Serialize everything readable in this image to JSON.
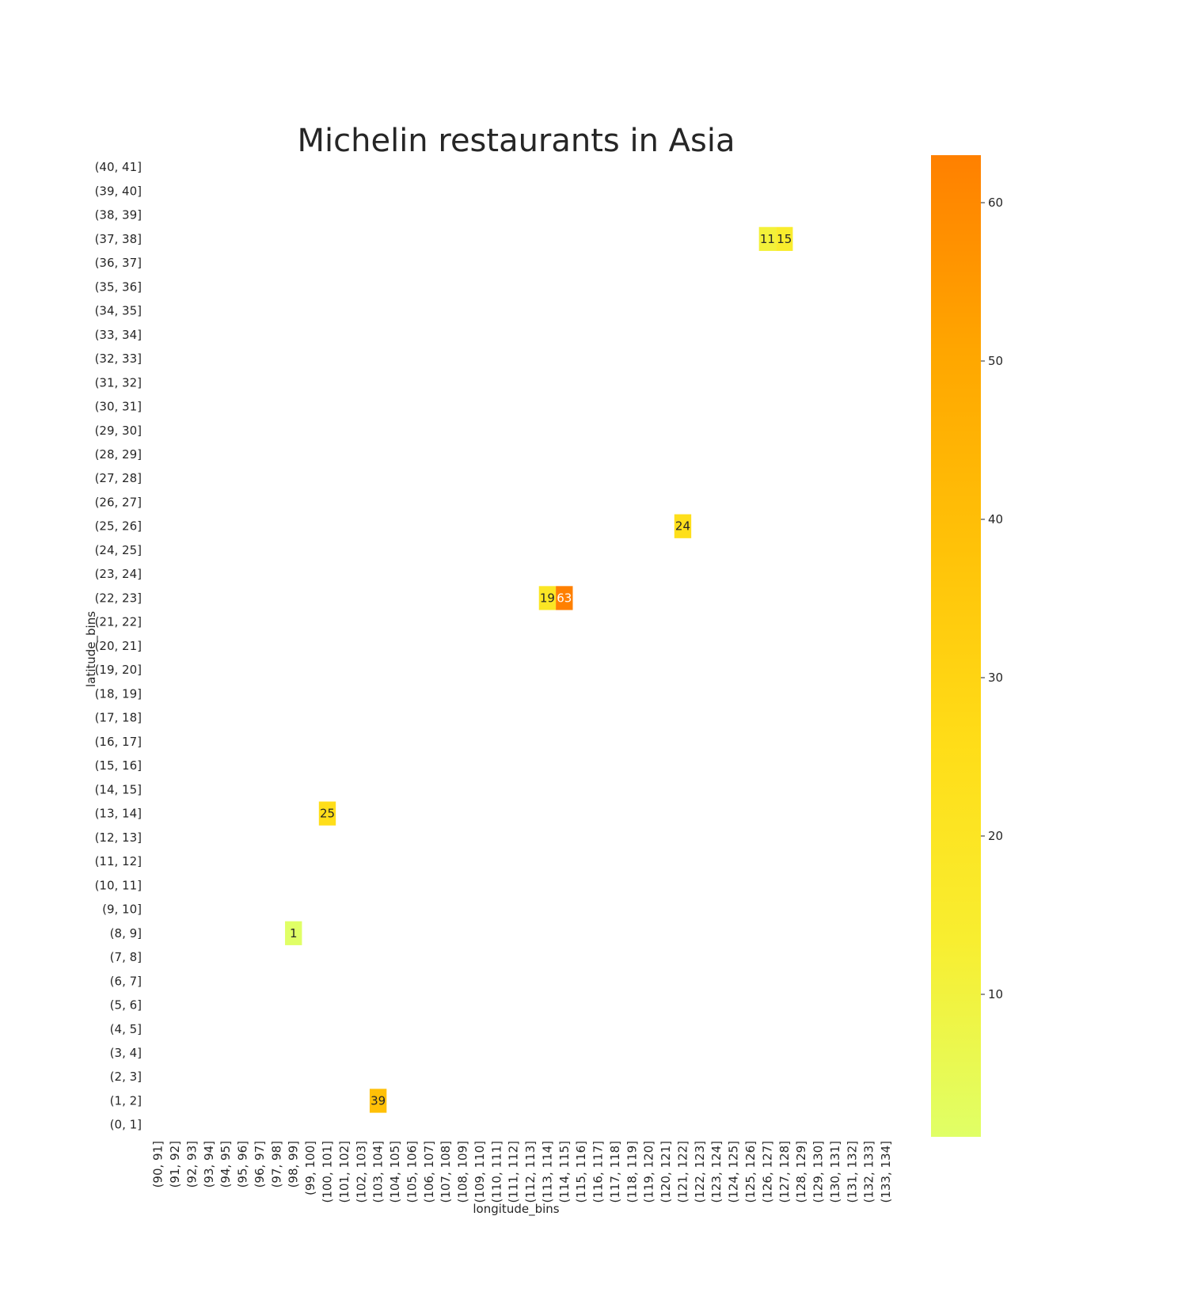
{
  "chart_data": {
    "type": "heatmap",
    "title": "Michelin restaurants in Asia",
    "xlabel": "longitude_bins",
    "ylabel": "latitude_bins",
    "x_categories": [
      "(90, 91]",
      "(91, 92]",
      "(92, 93]",
      "(93, 94]",
      "(94, 95]",
      "(95, 96]",
      "(96, 97]",
      "(97, 98]",
      "(98, 99]",
      "(99, 100]",
      "(100, 101]",
      "(101, 102]",
      "(102, 103]",
      "(103, 104]",
      "(104, 105]",
      "(105, 106]",
      "(106, 107]",
      "(107, 108]",
      "(108, 109]",
      "(109, 110]",
      "(110, 111]",
      "(111, 112]",
      "(112, 113]",
      "(113, 114]",
      "(114, 115]",
      "(115, 116]",
      "(116, 117]",
      "(117, 118]",
      "(118, 119]",
      "(119, 120]",
      "(120, 121]",
      "(121, 122]",
      "(122, 123]",
      "(123, 124]",
      "(124, 125]",
      "(125, 126]",
      "(126, 127]",
      "(127, 128]",
      "(128, 129]",
      "(129, 130]",
      "(130, 131]",
      "(131, 132]",
      "(132, 133]",
      "(133, 134]"
    ],
    "y_categories": [
      "(40, 41]",
      "(39, 40]",
      "(38, 39]",
      "(37, 38]",
      "(36, 37]",
      "(35, 36]",
      "(34, 35]",
      "(33, 34]",
      "(32, 33]",
      "(31, 32]",
      "(30, 31]",
      "(29, 30]",
      "(28, 29]",
      "(27, 28]",
      "(26, 27]",
      "(25, 26]",
      "(24, 25]",
      "(23, 24]",
      "(22, 23]",
      "(21, 22]",
      "(20, 21]",
      "(19, 20]",
      "(18, 19]",
      "(17, 18]",
      "(16, 17]",
      "(15, 16]",
      "(14, 15]",
      "(13, 14]",
      "(12, 13]",
      "(11, 12]",
      "(10, 11]",
      "(9, 10]",
      "(8, 9]",
      "(7, 8]",
      "(6, 7]",
      "(5, 6]",
      "(4, 5]",
      "(3, 4]",
      "(2, 3]",
      "(1, 2]",
      "(0, 1]"
    ],
    "cells": [
      {
        "x": "(126, 127]",
        "y": "(37, 38]",
        "value": 11
      },
      {
        "x": "(127, 128]",
        "y": "(37, 38]",
        "value": 15
      },
      {
        "x": "(121, 122]",
        "y": "(25, 26]",
        "value": 24
      },
      {
        "x": "(113, 114]",
        "y": "(22, 23]",
        "value": 19
      },
      {
        "x": "(114, 115]",
        "y": "(22, 23]",
        "value": 63
      },
      {
        "x": "(100, 101]",
        "y": "(13, 14]",
        "value": 25
      },
      {
        "x": "(98, 99]",
        "y": "(8, 9]",
        "value": 1
      },
      {
        "x": "(103, 104]",
        "y": "(1, 2]",
        "value": 39
      }
    ],
    "colorbar": {
      "min": 1,
      "max": 63,
      "ticks": [
        10,
        20,
        30,
        40,
        50,
        60
      ],
      "colors": [
        "#e0ff66",
        "#f8ee30",
        "#ffdd18",
        "#ffc208",
        "#ffa600",
        "#ff8000"
      ]
    },
    "grid": false
  }
}
